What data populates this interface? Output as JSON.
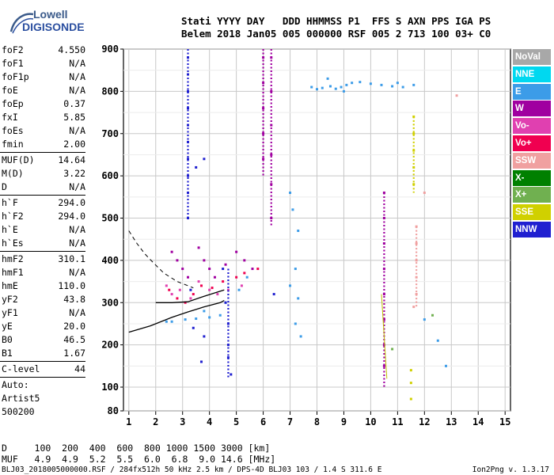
{
  "logo": {
    "line1": "Lowell",
    "line2": "DIGISONDE"
  },
  "header": {
    "labels": "Stati YYYY DAY   DDD HHMMSS P1  FFS S AXN PPS IGA PS",
    "values": "Belem 2018 Jan05 005 000000 RSF 005 2 713 100 03+ C0"
  },
  "params": [
    {
      "label": "foF2",
      "value": "4.550"
    },
    {
      "label": "foF1",
      "value": "N/A"
    },
    {
      "label": "foF1p",
      "value": "N/A"
    },
    {
      "label": "foE",
      "value": "N/A"
    },
    {
      "label": "foEp",
      "value": "0.37"
    },
    {
      "label": "fxI",
      "value": "5.85"
    },
    {
      "label": "foEs",
      "value": "N/A"
    },
    {
      "label": "fmin",
      "value": "2.00"
    },
    {
      "label": "MUF(D)",
      "value": "14.64"
    },
    {
      "label": "M(D)",
      "value": "3.22"
    },
    {
      "label": "D",
      "value": "N/A"
    },
    {
      "label": "h`F",
      "value": "294.0"
    },
    {
      "label": "h`F2",
      "value": "294.0"
    },
    {
      "label": "h`E",
      "value": "N/A"
    },
    {
      "label": "h`Es",
      "value": "N/A"
    },
    {
      "label": "hmF2",
      "value": "310.1"
    },
    {
      "label": "hmF1",
      "value": "N/A"
    },
    {
      "label": "hmE",
      "value": "110.0"
    },
    {
      "label": "yF2",
      "value": "43.8"
    },
    {
      "label": "yF1",
      "value": "N/A"
    },
    {
      "label": "yE",
      "value": "20.0"
    },
    {
      "label": "B0",
      "value": "46.5"
    },
    {
      "label": "B1",
      "value": "1.67"
    },
    {
      "label": "C-level",
      "value": "44"
    }
  ],
  "auto": {
    "line1": "Auto:",
    "line2": "Artist5",
    "line3": "500200"
  },
  "legend": [
    {
      "label": "NoVal",
      "color": "#a8a8a8"
    },
    {
      "label": "NNE",
      "color": "#00d8f0"
    },
    {
      "label": "E",
      "color": "#3c9ce8"
    },
    {
      "label": "W",
      "color": "#a000a0"
    },
    {
      "label": "Vo-",
      "color": "#e040b0"
    },
    {
      "label": "Vo+",
      "color": "#f00050"
    },
    {
      "label": "SSW",
      "color": "#f0a0a0"
    },
    {
      "label": "X-",
      "color": "#008000"
    },
    {
      "label": "X+",
      "color": "#70b050"
    },
    {
      "label": "SSE",
      "color": "#d0d000"
    },
    {
      "label": "NNW",
      "color": "#2020d0"
    }
  ],
  "chart_data": {
    "type": "scatter",
    "title": "",
    "xlabel": "",
    "ylabel": "",
    "x_ticks": [
      "1",
      "2",
      "3",
      "4",
      "5",
      "6",
      "7",
      "8",
      "9",
      "10",
      "11",
      "12",
      "13",
      "14",
      "15"
    ],
    "y_ticks": [
      "80",
      "100",
      "200",
      "300",
      "400",
      "500",
      "600",
      "700",
      "800",
      "900"
    ],
    "xlim": [
      0.8,
      15.2
    ],
    "ylim": [
      80,
      900
    ],
    "grid": true,
    "series": [
      {
        "name": "E",
        "color": "#3c9ce8",
        "points": [
          [
            7.8,
            810
          ],
          [
            8.0,
            805
          ],
          [
            8.2,
            808
          ],
          [
            8.5,
            812
          ],
          [
            8.7,
            806
          ],
          [
            8.9,
            810
          ],
          [
            9.1,
            815
          ],
          [
            9.3,
            820
          ],
          [
            9.6,
            822
          ],
          [
            10.0,
            818
          ],
          [
            10.4,
            815
          ],
          [
            10.8,
            812
          ],
          [
            11.2,
            810
          ],
          [
            8.4,
            830
          ],
          [
            9.0,
            800
          ],
          [
            7.0,
            560
          ],
          [
            7.1,
            520
          ],
          [
            7.3,
            470
          ],
          [
            7.2,
            380
          ],
          [
            7.0,
            340
          ],
          [
            7.3,
            310
          ],
          [
            7.2,
            250
          ],
          [
            7.4,
            220
          ],
          [
            12.0,
            260
          ],
          [
            12.5,
            210
          ],
          [
            12.8,
            150
          ],
          [
            11.0,
            820
          ],
          [
            11.6,
            815
          ],
          [
            3.1,
            260
          ],
          [
            3.5,
            262
          ],
          [
            4.0,
            265
          ],
          [
            4.4,
            270
          ],
          [
            2.6,
            255
          ],
          [
            2.4,
            255
          ],
          [
            3.8,
            280
          ],
          [
            4.6,
            300
          ],
          [
            5.1,
            330
          ],
          [
            5.4,
            360
          ]
        ]
      },
      {
        "name": "W",
        "color": "#a000a0",
        "points": [
          [
            6.0,
            880
          ],
          [
            6.0,
            820
          ],
          [
            6.0,
            760
          ],
          [
            6.0,
            700
          ],
          [
            6.0,
            640
          ],
          [
            6.3,
            880
          ],
          [
            6.3,
            800
          ],
          [
            6.3,
            720
          ],
          [
            6.3,
            650
          ],
          [
            6.3,
            580
          ],
          [
            6.3,
            500
          ],
          [
            10.5,
            560
          ],
          [
            10.5,
            500
          ],
          [
            10.5,
            440
          ],
          [
            10.5,
            380
          ],
          [
            10.5,
            320
          ],
          [
            10.5,
            260
          ],
          [
            10.5,
            200
          ],
          [
            10.5,
            150
          ],
          [
            2.6,
            420
          ],
          [
            2.8,
            400
          ],
          [
            3.0,
            380
          ],
          [
            3.2,
            360
          ],
          [
            3.6,
            430
          ],
          [
            3.8,
            400
          ],
          [
            4.0,
            380
          ],
          [
            4.2,
            360
          ],
          [
            4.6,
            390
          ],
          [
            5.0,
            420
          ],
          [
            5.3,
            400
          ],
          [
            5.6,
            380
          ]
        ]
      },
      {
        "name": "Vo-",
        "color": "#e040b0",
        "points": [
          [
            2.4,
            340
          ],
          [
            2.6,
            320
          ],
          [
            2.9,
            330
          ],
          [
            3.3,
            310
          ],
          [
            3.6,
            350
          ],
          [
            4.0,
            330
          ],
          [
            4.3,
            320
          ],
          [
            4.7,
            330
          ],
          [
            5.2,
            340
          ]
        ]
      },
      {
        "name": "Vo+",
        "color": "#f00050",
        "points": [
          [
            2.5,
            330
          ],
          [
            2.8,
            310
          ],
          [
            3.1,
            300
          ],
          [
            3.4,
            320
          ],
          [
            3.7,
            340
          ],
          [
            4.1,
            335
          ],
          [
            4.5,
            350
          ],
          [
            5.0,
            360
          ],
          [
            5.3,
            370
          ],
          [
            5.8,
            380
          ]
        ]
      },
      {
        "name": "SSW",
        "color": "#f0a0a0",
        "points": [
          [
            11.7,
            480
          ],
          [
            11.7,
            440
          ],
          [
            11.7,
            400
          ],
          [
            11.7,
            360
          ],
          [
            11.7,
            320
          ],
          [
            11.6,
            290
          ],
          [
            12.0,
            560
          ],
          [
            13.2,
            790
          ]
        ]
      },
      {
        "name": "SSE",
        "color": "#d0d000",
        "points": [
          [
            11.6,
            740
          ],
          [
            11.6,
            700
          ],
          [
            11.6,
            660
          ],
          [
            11.6,
            620
          ],
          [
            11.6,
            580
          ],
          [
            11.5,
            140
          ],
          [
            11.5,
            110
          ],
          [
            11.5,
            90
          ]
        ]
      },
      {
        "name": "NNW",
        "color": "#2020d0",
        "points": [
          [
            3.2,
            880
          ],
          [
            3.2,
            840
          ],
          [
            3.2,
            800
          ],
          [
            3.2,
            760
          ],
          [
            3.2,
            720
          ],
          [
            3.2,
            680
          ],
          [
            3.2,
            640
          ],
          [
            3.2,
            600
          ],
          [
            3.2,
            560
          ],
          [
            3.2,
            500
          ],
          [
            3.5,
            620
          ],
          [
            3.8,
            640
          ],
          [
            4.5,
            380
          ],
          [
            4.6,
            300
          ],
          [
            4.7,
            250
          ],
          [
            4.7,
            200
          ],
          [
            4.7,
            170
          ],
          [
            4.8,
            130
          ],
          [
            3.7,
            160
          ],
          [
            3.8,
            220
          ],
          [
            3.3,
            330
          ],
          [
            3.4,
            240
          ],
          [
            6.4,
            320
          ]
        ]
      },
      {
        "name": "X+",
        "color": "#70b050",
        "points": [
          [
            10.8,
            190
          ],
          [
            12.3,
            270
          ]
        ]
      }
    ],
    "traces": {
      "solid": [
        [
          1.0,
          230
        ],
        [
          1.8,
          245
        ],
        [
          2.6,
          265
        ],
        [
          3.2,
          278
        ],
        [
          3.8,
          290
        ],
        [
          4.4,
          300
        ],
        [
          4.55,
          305
        ]
      ],
      "solid2": [
        [
          2.0,
          300
        ],
        [
          2.6,
          300
        ],
        [
          3.2,
          302
        ],
        [
          3.8,
          315
        ],
        [
          4.3,
          325
        ],
        [
          4.55,
          330
        ]
      ],
      "dashed": [
        [
          1.0,
          470
        ],
        [
          1.3,
          440
        ],
        [
          1.6,
          415
        ],
        [
          1.9,
          395
        ],
        [
          2.3,
          370
        ],
        [
          2.8,
          350
        ],
        [
          3.4,
          335
        ]
      ],
      "spike": [
        [
          10.4,
          320
        ],
        [
          10.6,
          120
        ]
      ]
    }
  },
  "footer_table": {
    "row1": "D     100  200  400  600  800 1000 1500 3000 [km]",
    "row2": "MUF   4.9  4.9  5.2  5.5  6.0  6.8  9.0 14.6 [MHz]"
  },
  "footer": {
    "file_info": "BLJ03_2018005000000.RSF / 284fx512h 50 kHz 2.5 km / DPS-4D BLJ03 103 / 1.4 S 311.6 E",
    "version": "Ion2Png v. 1.3.17"
  }
}
